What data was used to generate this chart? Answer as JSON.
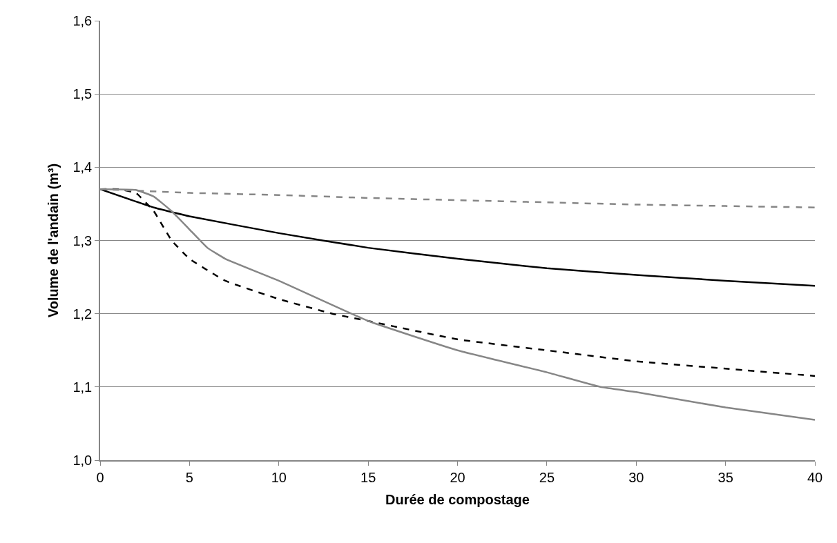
{
  "chart_data": {
    "type": "line",
    "xlabel": "Durée de compostage",
    "ylabel": "Volume de l'andain (m³)",
    "xlim": [
      0,
      40
    ],
    "xticks": [
      0,
      5,
      10,
      15,
      20,
      25,
      30,
      35,
      40
    ],
    "ylim": [
      1.0,
      1.6
    ],
    "yticks": [
      {
        "value": 1.0,
        "label": "1,0"
      },
      {
        "value": 1.1,
        "label": "1,1"
      },
      {
        "value": 1.2,
        "label": "1,2"
      },
      {
        "value": 1.3,
        "label": "1,3"
      },
      {
        "value": 1.4,
        "label": "1,4"
      },
      {
        "value": 1.5,
        "label": "1,5"
      },
      {
        "value": 1.6,
        "label": "1,6"
      }
    ],
    "grid": "y",
    "marker": "none",
    "series": [
      {
        "color": "#000000",
        "line_style": "solid",
        "x": [
          0,
          3,
          5,
          10,
          15,
          20,
          25,
          30,
          35,
          40
        ],
        "values": [
          1.37,
          1.345,
          1.333,
          1.31,
          1.29,
          1.275,
          1.262,
          1.253,
          1.245,
          1.238
        ]
      },
      {
        "color": "#000000",
        "line_style": "dashed",
        "x": [
          0,
          1,
          2,
          3,
          4,
          5,
          7,
          10,
          13,
          15,
          20,
          25,
          30,
          35,
          40
        ],
        "values": [
          1.37,
          1.37,
          1.365,
          1.34,
          1.3,
          1.275,
          1.245,
          1.22,
          1.2,
          1.19,
          1.165,
          1.15,
          1.135,
          1.125,
          1.115
        ]
      },
      {
        "color": "#868686",
        "line_style": "solid",
        "x": [
          0,
          2,
          3,
          4,
          5,
          6,
          7,
          10,
          15,
          20,
          25,
          28,
          30,
          35,
          40
        ],
        "values": [
          1.37,
          1.369,
          1.36,
          1.34,
          1.315,
          1.29,
          1.275,
          1.245,
          1.19,
          1.15,
          1.12,
          1.1,
          1.093,
          1.072,
          1.055
        ]
      },
      {
        "color": "#868686",
        "line_style": "dashed",
        "x": [
          0,
          5,
          10,
          15,
          20,
          25,
          30,
          35,
          40
        ],
        "values": [
          1.37,
          1.365,
          1.362,
          1.358,
          1.355,
          1.352,
          1.349,
          1.347,
          1.345
        ]
      }
    ]
  }
}
